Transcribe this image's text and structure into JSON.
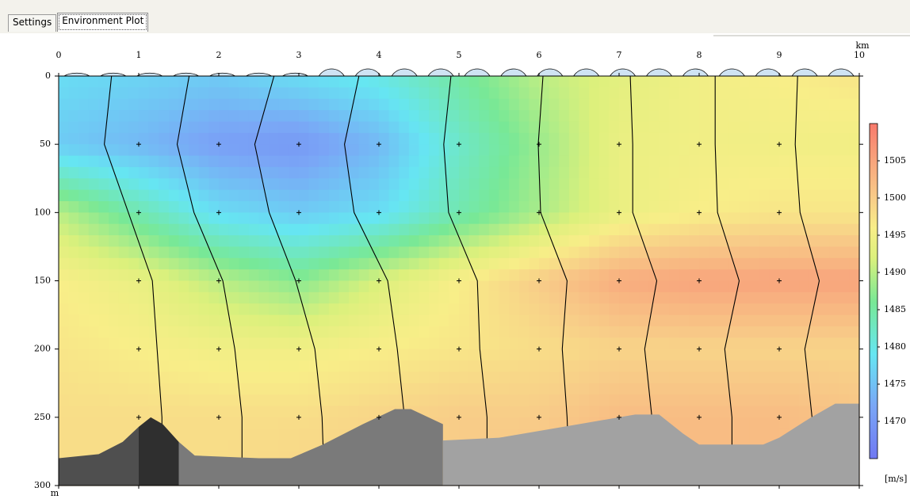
{
  "tabs": [
    "Settings",
    "Environment Plot"
  ],
  "chart_data": {
    "type": "contour",
    "x_unit": "km",
    "y_unit": "m",
    "colorbar_label": "[m/s]",
    "xlim": [
      0,
      10
    ],
    "xticks": [
      0,
      1,
      2,
      3,
      4,
      5,
      6,
      7,
      8,
      9,
      10
    ],
    "ylim": [
      0,
      300
    ],
    "yticks": [
      0,
      50,
      100,
      150,
      200,
      250,
      300
    ],
    "z": [
      [
        1478,
        1477,
        1476,
        1478,
        1480,
        1485,
        1490,
        1493,
        1495,
        1496,
        1497
      ],
      [
        1476,
        1474,
        1471,
        1470,
        1474,
        1482,
        1488,
        1494,
        1495,
        1495,
        1495
      ],
      [
        1490,
        1484,
        1478,
        1476,
        1478,
        1484,
        1489,
        1494,
        1496,
        1497,
        1497
      ],
      [
        1496,
        1494,
        1490,
        1487,
        1492,
        1496,
        1500,
        1504,
        1505,
        1505,
        1505
      ],
      [
        1497,
        1496,
        1495,
        1495,
        1496,
        1497,
        1498,
        1499,
        1499,
        1499,
        1499
      ],
      [
        1498,
        1498,
        1498,
        1498,
        1499,
        1500,
        1500,
        1502,
        1502,
        1502,
        1501
      ],
      [
        1498,
        1498,
        1498,
        1499,
        1499,
        1500,
        1501,
        1502,
        1502,
        1502,
        1501
      ]
    ],
    "zlim": [
      1465,
      1510
    ],
    "zticks": [
      1470,
      1475,
      1480,
      1485,
      1490,
      1495,
      1500,
      1505
    ],
    "colormap": [
      {
        "value": 1465,
        "color": "#6f78f2"
      },
      {
        "value": 1472,
        "color": "#7aa6f6"
      },
      {
        "value": 1479,
        "color": "#66e6f2"
      },
      {
        "value": 1486,
        "color": "#78e896"
      },
      {
        "value": 1492,
        "color": "#dcf07c"
      },
      {
        "value": 1496,
        "color": "#f8ee88"
      },
      {
        "value": 1500,
        "color": "#f8cc88"
      },
      {
        "value": 1505,
        "color": "#f8a47c"
      },
      {
        "value": 1510,
        "color": "#f87a6c"
      }
    ],
    "bottom": [
      {
        "color": "#4f4f4f",
        "x": [
          0,
          0.5,
          0.8,
          1
        ],
        "depth": [
          280,
          277,
          268,
          257
        ]
      },
      {
        "color": "#2f2f2f",
        "x": [
          1,
          1.15,
          1.3,
          1.5
        ],
        "depth": [
          257,
          250,
          255,
          268
        ]
      },
      {
        "color": "#7a7a7a",
        "x": [
          1.5,
          1.7,
          2.5,
          2.9,
          3.3,
          3.8,
          4.2,
          4.4,
          4.8
        ],
        "depth": [
          268,
          278,
          280,
          280,
          270,
          255,
          244,
          244,
          255
        ]
      },
      {
        "color": "#a2a2a2",
        "x": [
          4.8,
          5.5,
          6.5,
          7.2,
          7.5,
          7.8,
          8,
          8.8,
          9,
          9.4,
          9.7,
          10
        ],
        "depth": [
          267,
          265,
          255,
          248,
          248,
          262,
          270,
          270,
          265,
          250,
          240,
          240
        ]
      }
    ]
  }
}
